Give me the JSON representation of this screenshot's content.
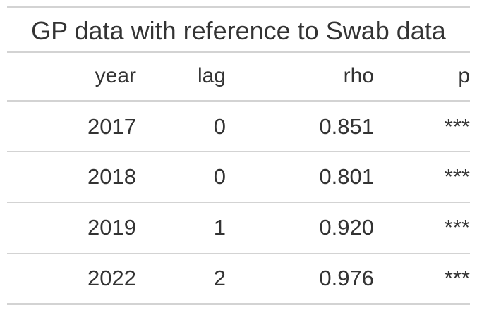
{
  "chart_data": {
    "type": "table",
    "title": "GP data with reference to Swab data",
    "columns": [
      "year",
      "lag",
      "rho",
      "p"
    ],
    "rows": [
      [
        "2017",
        "0",
        "0.851",
        "***"
      ],
      [
        "2018",
        "0",
        "0.801",
        "***"
      ],
      [
        "2019",
        "1",
        "0.920",
        "***"
      ],
      [
        "2022",
        "2",
        "0.976",
        "***"
      ]
    ]
  },
  "colors": {
    "text": "#333333",
    "rule": "#d3d3d3",
    "background": "#ffffff"
  }
}
